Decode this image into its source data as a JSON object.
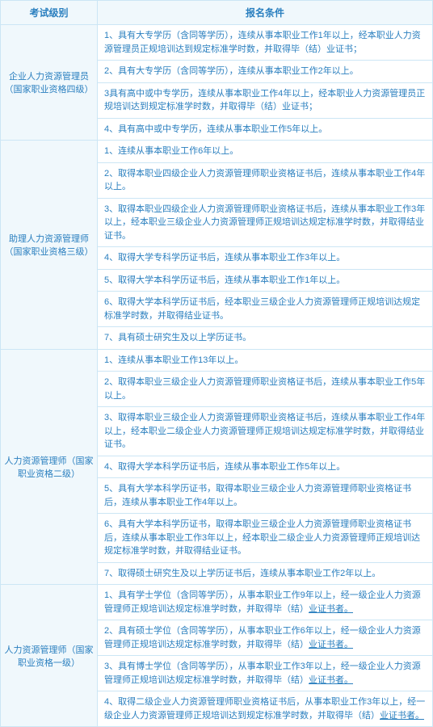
{
  "header": {
    "col1": "考试级别",
    "col2": "报名条件"
  },
  "rows": [
    {
      "level": "企业人力资源管理员（国家职业资格四级）",
      "conditions": [
        "1、具有大专学历（含同等学历），连续从事本职业工作1年以上，经本职业人力资源管理员正规培训达到规定标准学时数，并取得毕（结）业证书；",
        "2、具有大专学历（含同等学历），连续从事本职业工作2年以上。",
        "3具有高中或中专学历，连续从事本职业工作4年以上，经本职业人力资源管理员正规培训达到规定标准学时数，并取得毕（结）业证书；",
        "4、具有高中或中专学历，连续从事本职业工作5年以上。"
      ]
    },
    {
      "level": "助理人力资源管理师（国家职业资格三级）",
      "conditions": [
        "1、连续从事本职业工作6年以上。",
        "2、取得本职业四级企业人力资源管理师职业资格证书后，连续从事本职业工作4年以上。",
        "3、取得本职业四级企业人力资源管理师职业资格证书后，连续从事本职业工作3年以上，经本职业三级企业人力资源管理师正规培训达规定标准学时数，并取得结业证书。",
        "4、取得大学专科学历证书后，连续从事本职业工作3年以上。",
        "5、取得大学本科学历证书后，连续从事本职业工作1年以上。",
        "6、取得大学本科学历证书后，经本职业三级企业人力资源管理师正规培训达规定标准学时数，并取得结业证书。",
        "7、具有硕士研究生及以上学历证书。"
      ]
    },
    {
      "level": "人力资源管理师（国家职业资格二级）",
      "conditions": [
        "1、连续从事本职业工作13年以上。",
        "2、取得本职业三级企业人力资源管理师职业资格证书后，连续从事本职业工作5年以上。",
        "3、取得本职业三级企业人力资源管理师职业资格证书后，连续从事本职业工作4年以上，经本职业二级企业人力资源管理师正规培训达规定标准学时数，并取得结业证书。",
        "4、取得大学本科学历证书后，连续从事本职业工作5年以上。",
        "5、具有大学本科学历证书，取得本职业三级企业人力资源管理师职业资格证书后，连续从事本职业工作4年以上。",
        "6、具有大学本科学历证书，取得本职业三级企业人力资源管理师职业资格证书后，连续从事本职业工作3年以上，经本职业二级企业人力资源管理师正规培训达规定标准学时数，并取得结业证书。",
        "7、取得硕士研究生及以上学历证书后，连续从事本职业工作2年以上。"
      ]
    },
    {
      "level": "人力资源管理师（国家职业资格一级）",
      "conditions": [
        "1、具有学士学位（含同等学历），从事本职业工作9年以上，经一级企业人力资源管理师正规培训达规定标准学时数，并取得毕（结）<span class='ul'>业证书者。</span>",
        "2、具有硕士学位（含同等学历），从事本职业工作6年以上，经一级企业人力资源管理师正规培训达规定标准学时数，并取得毕（结）<span class='ul'>业证书者。</span>",
        "3、具有博士学位（含同等学历），从事本职业工作3年以上，经一级企业人力资源管理师正规培训达规定标准学时数，并取得毕（结）<span class='ul'>业证书者。</span>",
        "4、取得二级企业人力资源管理师职业资格证书后，从事本职业工作3年以上，经一级企业人力资源管理师正规培训达到规定标准学时数，并取得毕（结）<span class='ul'>业证书者。</span>"
      ]
    }
  ]
}
